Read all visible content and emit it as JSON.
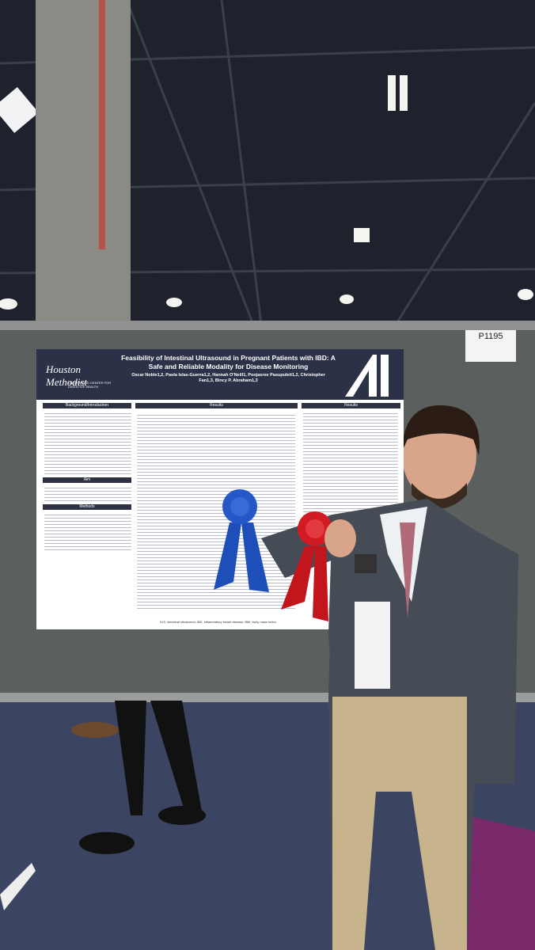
{
  "poster_id": "P1195",
  "poster": {
    "logo": "Houston Methodist",
    "logo_sub": "Underwood Center for Digestive Health",
    "title": "Feasibility of Intestinal Ultrasound in Pregnant Patients with IBD: A Safe and Reliable Modality for Disease Monitoring",
    "authors": "Oscar Noble1,2, Paola Islas-Guerra1,2, Hannah O'Neill1, Poojasree Pasupuleti1,2, Christopher Fan1,3, Bincy P. Abraham1,3",
    "sections": [
      "Background/Introduction",
      "Aim",
      "Methods",
      "Results",
      "Results"
    ],
    "footnote": "IUS, intestinal ultrasound; IBD, inflammatory bowel disease; BMI, body mass index."
  }
}
